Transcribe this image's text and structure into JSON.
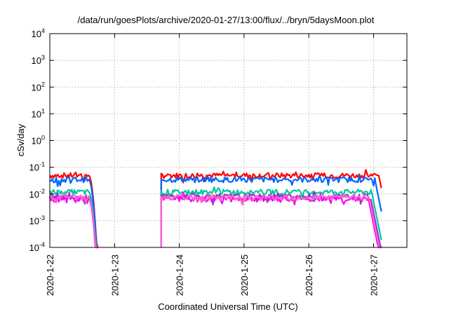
{
  "chart_data": {
    "type": "line",
    "title": "/data/run/goesPlots/archive/2020-01-27/13:00/flux/../bryn/5daysMoon.plot",
    "xlabel": "Coordinated Universal Time (UTC)",
    "ylabel": "cSv/day",
    "yscale": "log",
    "ylim": [
      0.0001,
      10000
    ],
    "xlim": [
      "2020-01-22",
      "2020-01-27 12:00"
    ],
    "x_ticks": [
      "2020-1-22",
      "2020-1-23",
      "2020-1-24",
      "2020-1-25",
      "2020-1-26",
      "2020-1-27"
    ],
    "y_ticks": [
      {
        "base": "10",
        "exp": "4"
      },
      {
        "base": "10",
        "exp": "3"
      },
      {
        "base": "10",
        "exp": "2"
      },
      {
        "base": "10",
        "exp": "1"
      },
      {
        "base": "10",
        "exp": "0"
      },
      {
        "base": "10",
        "exp": "-1"
      },
      {
        "base": "10",
        "exp": "-2"
      },
      {
        "base": "10",
        "exp": "-3"
      },
      {
        "base": "10",
        "exp": "-4"
      }
    ],
    "grid": true,
    "legend": "none",
    "series": [
      {
        "color": "#ff0000",
        "level": 0.05,
        "cutoff_day": 5.08
      },
      {
        "color": "#0066ff",
        "level": 0.035,
        "cutoff_day": 5.02
      },
      {
        "color": "#00c8a0",
        "level": 0.012,
        "cutoff_day": 4.97
      },
      {
        "color": "#9933cc",
        "level": 0.008,
        "cutoff_day": 4.95
      },
      {
        "color": "#ff00ff",
        "level": 0.0065,
        "cutoff_day": 4.92
      },
      {
        "color": "#ff66cc",
        "level": 0.0075,
        "cutoff_day": 4.93
      }
    ],
    "segments": [
      {
        "start_day": 0.0,
        "end_day": 0.72
      },
      {
        "start_day": 1.72,
        "end_day": 5.12
      }
    ]
  }
}
